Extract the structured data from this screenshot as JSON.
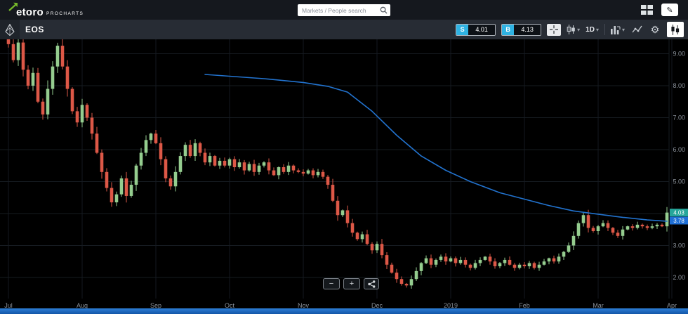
{
  "header": {
    "logo_text": "etoro",
    "logo_sub": "PROCHARTS",
    "search_placeholder": "Markets / People search"
  },
  "icons": {
    "chevron_down": "▾",
    "gear": "⚙",
    "pencil": "✎"
  },
  "toolbar": {
    "symbol": "EOS",
    "sell_label": "S",
    "sell_price": "4.01",
    "buy_label": "B",
    "buy_price": "4.13",
    "interval": "1D"
  },
  "chart_controls": {
    "zoom_out_label": "−",
    "zoom_in_label": "+"
  },
  "chart_data": {
    "type": "candlestick",
    "symbol": "EOS",
    "interval": "1D",
    "x_labels": [
      "Jul",
      "Aug",
      "Sep",
      "Oct",
      "Nov",
      "Dec",
      "2019",
      "Feb",
      "Mar",
      "Apr"
    ],
    "candles_per_month": 15,
    "first_open": 9.45,
    "closes": [
      9.3,
      8.8,
      9.35,
      8.5,
      8.0,
      8.4,
      7.5,
      7.1,
      7.9,
      8.6,
      9.25,
      8.6,
      7.9,
      7.2,
      6.85,
      7.4,
      7.0,
      6.5,
      5.9,
      5.3,
      4.8,
      4.35,
      4.6,
      5.1,
      4.55,
      4.9,
      5.5,
      5.9,
      6.3,
      6.5,
      6.2,
      5.7,
      5.1,
      4.85,
      5.3,
      5.8,
      6.15,
      5.8,
      6.2,
      5.9,
      5.6,
      5.8,
      5.5,
      5.65,
      5.5,
      5.7,
      5.45,
      5.6,
      5.35,
      5.55,
      5.3,
      5.5,
      5.6,
      5.35,
      5.2,
      5.45,
      5.3,
      5.5,
      5.35,
      5.3,
      5.25,
      5.35,
      5.2,
      5.3,
      5.15,
      4.9,
      4.4,
      3.95,
      4.1,
      3.7,
      3.4,
      3.2,
      3.35,
      3.05,
      2.85,
      3.05,
      2.7,
      2.4,
      2.15,
      1.95,
      1.8,
      1.75,
      1.95,
      2.2,
      2.45,
      2.6,
      2.4,
      2.55,
      2.65,
      2.5,
      2.6,
      2.45,
      2.55,
      2.4,
      2.3,
      2.45,
      2.55,
      2.65,
      2.5,
      2.35,
      2.45,
      2.55,
      2.4,
      2.3,
      2.4,
      2.35,
      2.45,
      2.3,
      2.4,
      2.5,
      2.6,
      2.5,
      2.65,
      2.8,
      3.0,
      3.3,
      3.7,
      3.95,
      3.55,
      3.45,
      3.6,
      3.7,
      3.55,
      3.4,
      3.3,
      3.5,
      3.6,
      3.55,
      3.65,
      3.6,
      3.55,
      3.6,
      3.65,
      3.6,
      4.03
    ],
    "y_ticks": [
      2,
      3,
      4,
      5,
      6,
      7,
      8,
      9
    ],
    "ylim": [
      1.34,
      9.45
    ],
    "up_color": "#95cd8f",
    "down_color": "#dd5847",
    "grid_color": "#161b21",
    "axis_text_color": "#8b929b",
    "ma_series": {
      "name": "moving-average",
      "color": "#2273cf",
      "points": [
        [
          40,
          8.35
        ],
        [
          52,
          8.22
        ],
        [
          60,
          8.1
        ],
        [
          65,
          7.98
        ],
        [
          69,
          7.8
        ],
        [
          74,
          7.2
        ],
        [
          79,
          6.45
        ],
        [
          84,
          5.8
        ],
        [
          89,
          5.35
        ],
        [
          94,
          5.0
        ],
        [
          100,
          4.65
        ],
        [
          105,
          4.45
        ],
        [
          110,
          4.25
        ],
        [
          115,
          4.08
        ],
        [
          120,
          3.98
        ],
        [
          125,
          3.88
        ],
        [
          130,
          3.8
        ],
        [
          134,
          3.76
        ]
      ]
    },
    "last_price_badge": {
      "value": "4.03",
      "color": "#26a69a"
    },
    "ma_price_badge": {
      "value": "3.78",
      "color": "#1f6fd6"
    }
  }
}
